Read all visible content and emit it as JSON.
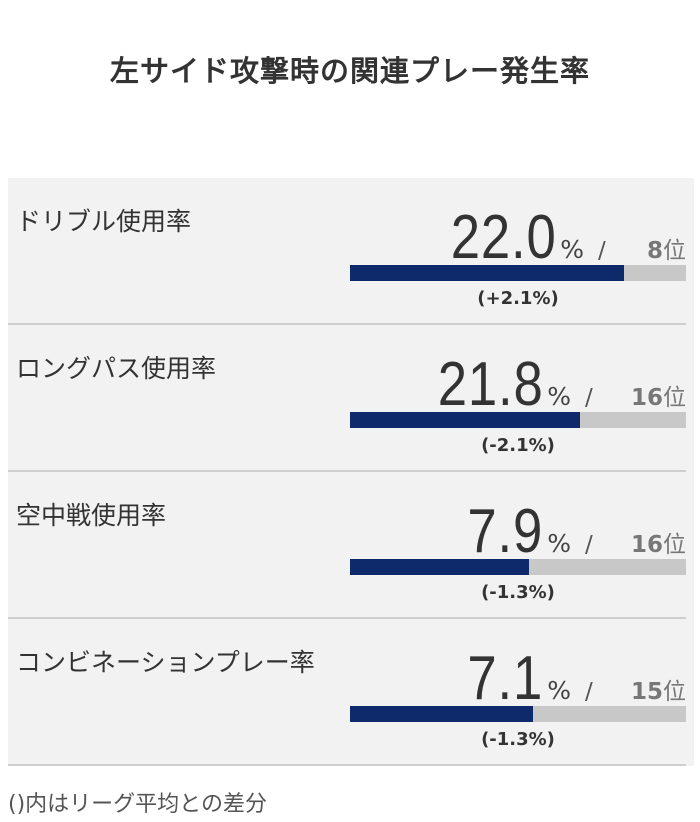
{
  "title": "左サイド攻撃時の関連プレー発生率",
  "note": "()内はリーグ平均との差分",
  "colors": {
    "bar_fill": "#0f2a6b",
    "bar_track": "#c8c8c8",
    "card_bg": "#f2f2f2"
  },
  "chart_data": {
    "type": "bar",
    "title": "左サイド攻撃時の関連プレー発生率",
    "unit": "%",
    "rank_suffix": "位",
    "slash": "/",
    "items": [
      {
        "label": "ドリブル使用率",
        "value": "22.0",
        "rank": "8",
        "diff": "(+2.1%)",
        "bar_fraction": 0.815
      },
      {
        "label": "ロングパス使用率",
        "value": "21.8",
        "rank": "16",
        "diff": "(-2.1%)",
        "bar_fraction": 0.685
      },
      {
        "label": "空中戦使用率",
        "value": "7.9",
        "rank": "16",
        "diff": "(-1.3%)",
        "bar_fraction": 0.533
      },
      {
        "label": "コンビネーションプレー率",
        "value": "7.1",
        "rank": "15",
        "diff": "(-1.3%)",
        "bar_fraction": 0.545
      }
    ]
  }
}
